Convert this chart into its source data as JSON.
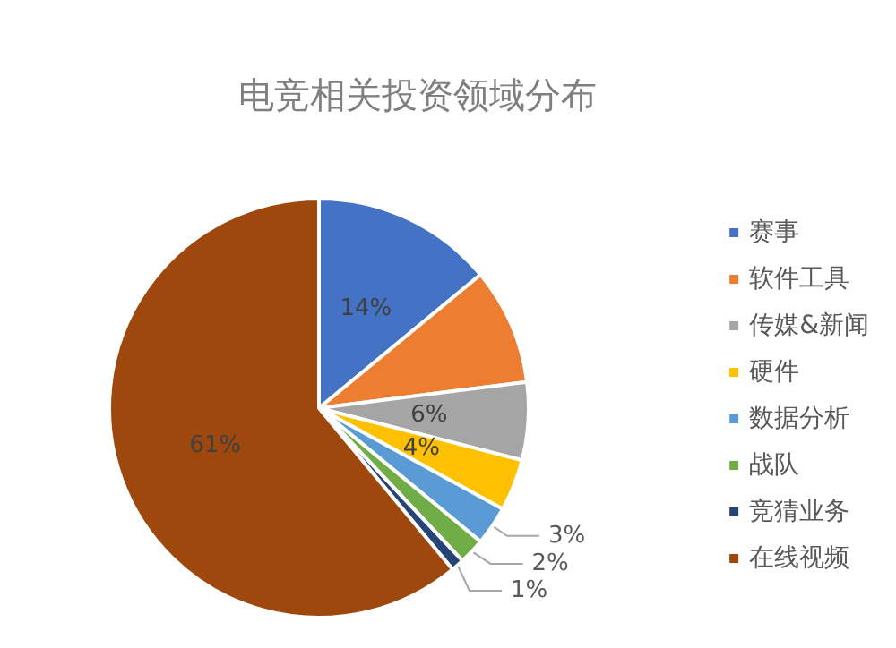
{
  "chart_data": {
    "type": "pie",
    "title": "电竞相关投资领域分布",
    "categories": [
      "赛事",
      "软件工具",
      "传媒&新闻",
      "硬件",
      "数据分析",
      "战队",
      "竞猜业务",
      "在线视频"
    ],
    "values": [
      14,
      9,
      6,
      4,
      3,
      2,
      1,
      61
    ],
    "colors": [
      "#4472c4",
      "#ed7d31",
      "#a5a5a5",
      "#ffc000",
      "#5b9bd5",
      "#70ad47",
      "#264478",
      "#9e480e"
    ],
    "value_labels": [
      "14%",
      null,
      "6%",
      "4%",
      "3%",
      "2%",
      "1%",
      "61%"
    ],
    "legend": "right"
  }
}
